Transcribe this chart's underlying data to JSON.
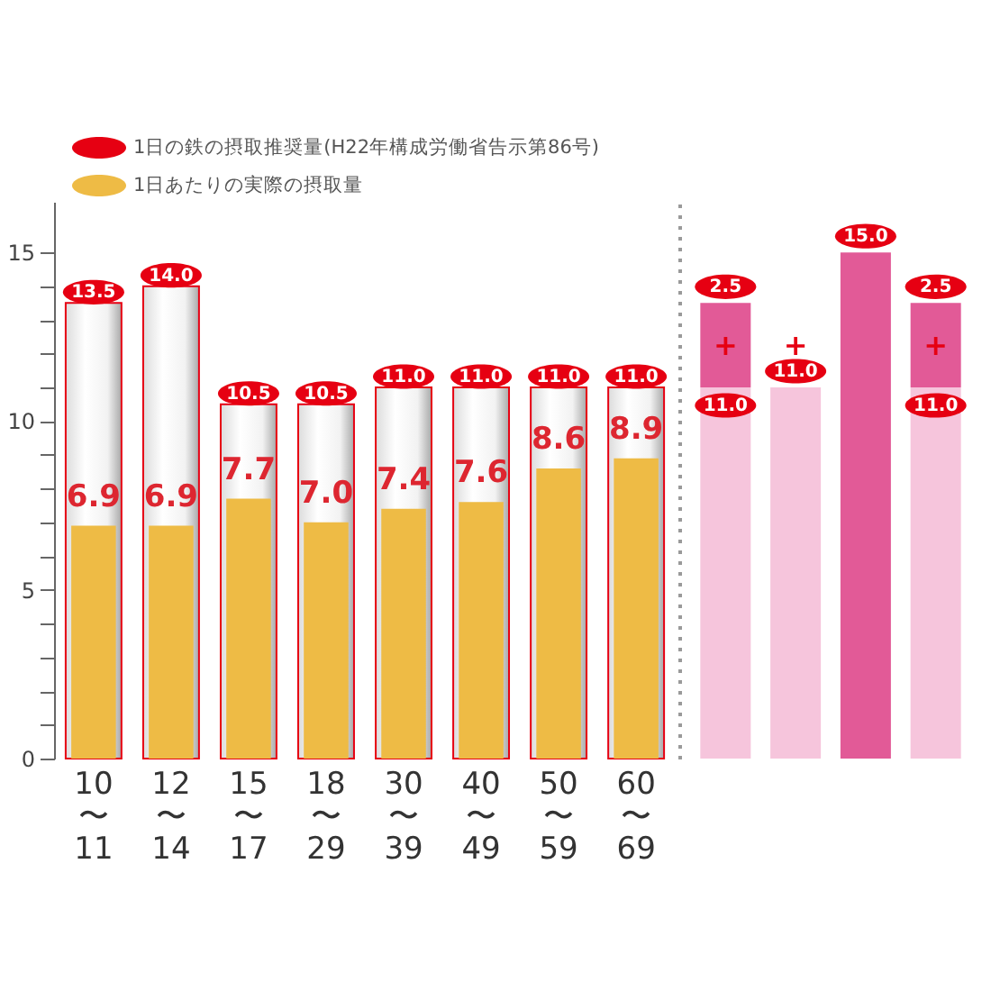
{
  "chart_data": [
    {
      "type": "bar",
      "categories": [
        "10〜11",
        "12〜14",
        "15〜17",
        "18〜29",
        "30〜39",
        "40〜49",
        "50〜59",
        "60〜69"
      ],
      "series": [
        {
          "name": "1日の鉄の摂取推奨量(H22年構成労働省告示第86号)",
          "color": "#e60012",
          "values": [
            13.5,
            14.0,
            10.5,
            10.5,
            11.0,
            11.0,
            11.0,
            11.0
          ],
          "value_labels": [
            "13.5",
            "14.0",
            "10.5",
            "10.5",
            "11.0",
            "11.0",
            "11.0",
            "11.0"
          ]
        },
        {
          "name": "1日あたりの実際の摂取量",
          "color": "#eebb45",
          "values": [
            6.9,
            6.9,
            7.7,
            7.0,
            7.4,
            7.6,
            8.6,
            8.9
          ],
          "value_labels": [
            "6.9",
            "6.9",
            "7.7",
            "7.0",
            "7.4",
            "7.6",
            "8.6",
            "8.9"
          ]
        }
      ],
      "ylim": [
        0,
        16.5
      ],
      "yticks": [
        0,
        {
          "value": 1,
          "label": null
        },
        {
          "value": 2,
          "label": null
        },
        {
          "value": 3,
          "label": null
        },
        {
          "value": 4,
          "label": null
        },
        5,
        {
          "value": 6,
          "label": null
        },
        {
          "value": 7,
          "label": null
        },
        {
          "value": 8,
          "label": null
        },
        {
          "value": 9,
          "label": null
        },
        10,
        {
          "value": 11,
          "label": null
        },
        {
          "value": 12,
          "label": null
        },
        {
          "value": 13,
          "label": null
        },
        {
          "value": 14,
          "label": null
        },
        15
      ],
      "legend": "top left"
    },
    {
      "type": "bar",
      "stacked": true,
      "categories": [
        null,
        null,
        null,
        null
      ],
      "series": [
        {
          "color": "#f6c5dc",
          "values": [
            11.0,
            11.0,
            null,
            11.0
          ],
          "value_labels": [
            "11.0",
            "11.0",
            null,
            "11.0"
          ]
        },
        {
          "color": "#e25a97",
          "values": [
            2.5,
            null,
            15.0,
            2.5
          ],
          "value_labels": [
            "2.5",
            null,
            "15.0",
            "2.5"
          ]
        }
      ],
      "ylim": [
        0,
        16.5
      ],
      "tick_labels": false,
      "annotations": [
        "+",
        "+",
        "+"
      ]
    }
  ]
}
